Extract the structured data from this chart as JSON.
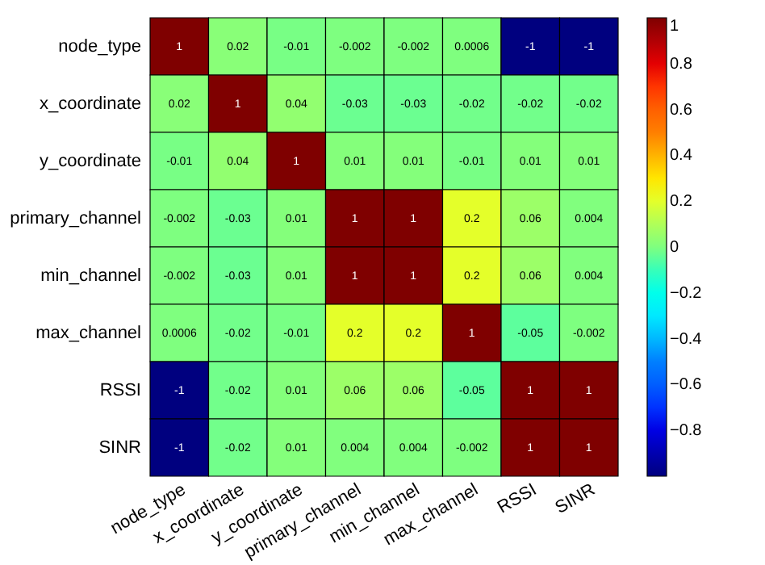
{
  "chart_data": {
    "type": "heatmap",
    "categories": [
      "node_type",
      "x_coordinate",
      "y_coordinate",
      "primary_channel",
      "min_channel",
      "max_channel",
      "RSSI",
      "SINR"
    ],
    "y_categories": [
      "node_type",
      "x_coordinate",
      "y_coordinate",
      "primary_channel",
      "min_channel",
      "max_channel",
      "RSSI",
      "SINR"
    ],
    "cells": [
      [
        1,
        0.02,
        -0.01,
        -0.002,
        -0.002,
        0.0006,
        -1,
        -1
      ],
      [
        0.02,
        1,
        0.04,
        -0.03,
        -0.03,
        -0.02,
        -0.02,
        -0.02
      ],
      [
        -0.01,
        0.04,
        1,
        0.01,
        0.01,
        -0.01,
        0.01,
        0.01
      ],
      [
        -0.002,
        -0.03,
        0.01,
        1,
        1,
        0.2,
        0.06,
        0.004
      ],
      [
        -0.002,
        -0.03,
        0.01,
        1,
        1,
        0.2,
        0.06,
        0.004
      ],
      [
        0.0006,
        -0.02,
        -0.01,
        0.2,
        0.2,
        1,
        -0.05,
        -0.002
      ],
      [
        -1,
        -0.02,
        0.01,
        0.06,
        0.06,
        -0.05,
        1,
        1
      ],
      [
        -1,
        -0.02,
        0.01,
        0.004,
        0.004,
        -0.002,
        1,
        1
      ]
    ],
    "clim": [
      -1,
      1
    ],
    "cticks": [
      1,
      0.8,
      0.6,
      0.4,
      0.2,
      0,
      -0.2,
      -0.4,
      -0.6,
      -0.8
    ],
    "data_labels": true
  }
}
